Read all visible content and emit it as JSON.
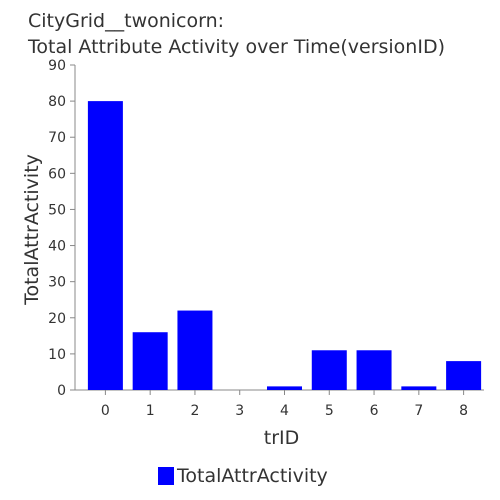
{
  "title": {
    "line1": "CityGrid__twonicorn:",
    "line2": "Total Attribute Activity over Time(versionID)"
  },
  "colors": {
    "bar": "#0000ff",
    "axis": "#888888",
    "text": "#333333"
  },
  "chart_data": {
    "type": "bar",
    "categories": [
      "0",
      "1",
      "2",
      "3",
      "4",
      "5",
      "6",
      "7",
      "8"
    ],
    "series": [
      {
        "name": "TotalAttrActivity",
        "values": [
          80,
          16,
          22,
          0,
          1,
          11,
          11,
          1,
          8
        ]
      }
    ],
    "xlabel": "trID",
    "ylabel": "TotalAttrActivity",
    "ylim": [
      0,
      90
    ],
    "yticks": [
      "0",
      "10",
      "20",
      "30",
      "40",
      "50",
      "60",
      "70",
      "80",
      "90"
    ],
    "grid": false,
    "legend": "bottom"
  }
}
